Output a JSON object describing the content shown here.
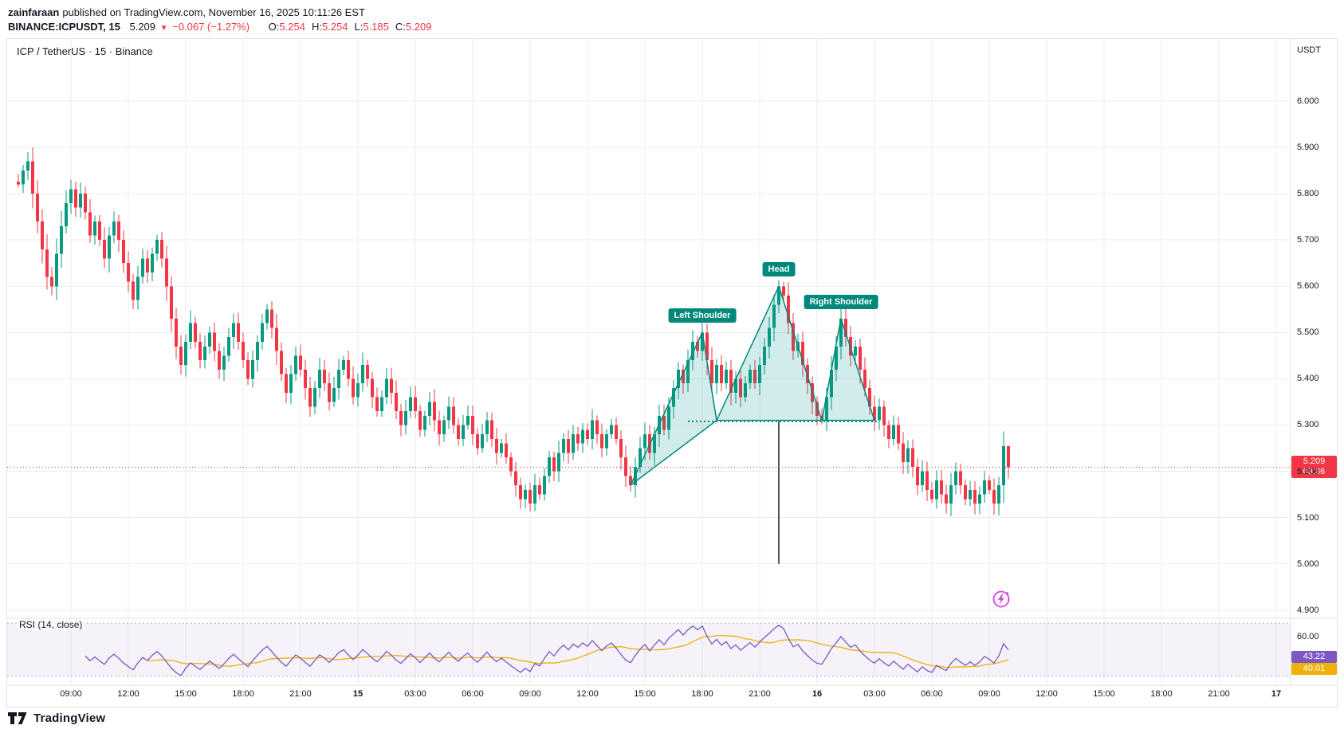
{
  "header": {
    "author": "zainfaraan",
    "published": "published on TradingView.com, November 16, 2025 10:11:26 EST",
    "symbol": "BINANCE:ICPUSDT, 15",
    "last": "5.209",
    "direction": "▼",
    "change": "−0.067 (−1.27%)",
    "o_label": "O:",
    "o_value": "5.254",
    "h_label": "H:",
    "h_value": "5.254",
    "l_label": "L:",
    "l_value": "5.185",
    "c_label": "C:",
    "c_value": "5.209"
  },
  "chart": {
    "title": "ICP / TetherUS · 15 · Binance",
    "quote_currency": "USDT",
    "price_axis": [
      "6.000",
      "5.900",
      "5.800",
      "5.700",
      "5.600",
      "5.500",
      "5.400",
      "5.300",
      "5.200",
      "5.100",
      "5.000",
      "4.900"
    ],
    "time_axis": [
      "09:00",
      "12:00",
      "15:00",
      "18:00",
      "21:00",
      "15",
      "03:00",
      "06:00",
      "09:00",
      "12:00",
      "15:00",
      "18:00",
      "21:00",
      "16",
      "03:00",
      "06:00",
      "09:00",
      "12:00",
      "15:00",
      "18:00",
      "21:00",
      "17"
    ],
    "pattern_labels": [
      "Left Shoulder",
      "Head",
      "Right Shoulder"
    ],
    "current_price_badge": {
      "price": "5.209",
      "countdown": "03:36"
    },
    "colors": {
      "up": "#089981",
      "down": "#F23645",
      "grid": "#ebedf0",
      "border": "#dde0e7",
      "pattern": "#00897B",
      "pattern_fill": "rgba(0,150,136,0.18)",
      "target": "#1b1f27",
      "rsi": "#7E57C2",
      "rsi_ma": "#EFB008",
      "rsi_band": "rgba(126,87,194,0.08)",
      "rsi_level": "rgba(120,123,134,0.6)"
    }
  },
  "rsi": {
    "label": "RSI (14, close)",
    "axis_label": "60.00",
    "value": "43.22",
    "ma_value": "40.01"
  },
  "footer": {
    "brand": "TradingView"
  },
  "chart_data": {
    "type": "candlestick",
    "symbol": "BINANCE:ICPUSDT",
    "interval": "15m",
    "quote": "USDT",
    "title": "ICP / TetherUS · 15 · Binance",
    "ylim": [
      4.88,
      6.13
    ],
    "price_gridlines": [
      6.0,
      5.9,
      5.8,
      5.7,
      5.6,
      5.5,
      5.4,
      5.3,
      5.2,
      5.1,
      5.0,
      4.9
    ],
    "x_tick_labels": [
      "09:00",
      "12:00",
      "15:00",
      "18:00",
      "21:00",
      "15",
      "03:00",
      "06:00",
      "09:00",
      "12:00",
      "15:00",
      "18:00",
      "21:00",
      "16",
      "03:00",
      "06:00",
      "09:00",
      "12:00",
      "15:00",
      "18:00",
      "21:00",
      "17"
    ],
    "closes": [
      5.82,
      5.85,
      5.87,
      5.8,
      5.74,
      5.68,
      5.62,
      5.6,
      5.67,
      5.73,
      5.78,
      5.81,
      5.77,
      5.8,
      5.76,
      5.71,
      5.74,
      5.7,
      5.66,
      5.71,
      5.74,
      5.7,
      5.65,
      5.61,
      5.57,
      5.62,
      5.66,
      5.63,
      5.67,
      5.7,
      5.66,
      5.6,
      5.53,
      5.47,
      5.43,
      5.48,
      5.52,
      5.48,
      5.44,
      5.47,
      5.5,
      5.46,
      5.42,
      5.45,
      5.49,
      5.52,
      5.48,
      5.44,
      5.4,
      5.44,
      5.48,
      5.52,
      5.55,
      5.51,
      5.46,
      5.41,
      5.37,
      5.41,
      5.45,
      5.42,
      5.38,
      5.34,
      5.38,
      5.42,
      5.39,
      5.35,
      5.38,
      5.42,
      5.44,
      5.4,
      5.36,
      5.39,
      5.43,
      5.4,
      5.36,
      5.33,
      5.36,
      5.4,
      5.37,
      5.33,
      5.3,
      5.33,
      5.36,
      5.33,
      5.29,
      5.32,
      5.35,
      5.31,
      5.28,
      5.31,
      5.34,
      5.3,
      5.27,
      5.3,
      5.32,
      5.28,
      5.25,
      5.28,
      5.31,
      5.27,
      5.24,
      5.26,
      5.23,
      5.2,
      5.17,
      5.14,
      5.16,
      5.13,
      5.17,
      5.15,
      5.19,
      5.23,
      5.2,
      5.24,
      5.27,
      5.24,
      5.28,
      5.26,
      5.29,
      5.27,
      5.31,
      5.28,
      5.25,
      5.28,
      5.3,
      5.27,
      5.23,
      5.19,
      5.17,
      5.21,
      5.25,
      5.28,
      5.24,
      5.28,
      5.32,
      5.29,
      5.34,
      5.38,
      5.42,
      5.39,
      5.44,
      5.48,
      5.46,
      5.5,
      5.44,
      5.39,
      5.43,
      5.39,
      5.42,
      5.37,
      5.4,
      5.36,
      5.39,
      5.42,
      5.39,
      5.43,
      5.47,
      5.51,
      5.56,
      5.6,
      5.58,
      5.52,
      5.46,
      5.48,
      5.43,
      5.39,
      5.35,
      5.32,
      5.31,
      5.36,
      5.42,
      5.47,
      5.53,
      5.49,
      5.45,
      5.47,
      5.42,
      5.38,
      5.34,
      5.31,
      5.34,
      5.3,
      5.27,
      5.3,
      5.26,
      5.22,
      5.25,
      5.21,
      5.17,
      5.2,
      5.16,
      5.14,
      5.18,
      5.15,
      5.13,
      5.17,
      5.2,
      5.17,
      5.14,
      5.16,
      5.13,
      5.15,
      5.18,
      5.16,
      5.13,
      5.17,
      5.254,
      5.209
    ],
    "last_candle": {
      "o": 5.254,
      "h": 5.254,
      "l": 5.185,
      "c": 5.209
    },
    "current_price": 5.209,
    "pattern": {
      "name": "Head and Shoulders",
      "anchors": [
        [
          143,
          5.5
        ],
        [
          159,
          5.6
        ],
        [
          172,
          5.53
        ]
      ],
      "triangles": [
        [
          [
            128,
            5.17
          ],
          [
            143,
            5.5
          ],
          [
            146,
            5.31
          ]
        ],
        [
          [
            146,
            5.31
          ],
          [
            159,
            5.6
          ],
          [
            168,
            5.31
          ]
        ],
        [
          [
            168,
            5.31
          ],
          [
            172,
            5.53
          ],
          [
            179,
            5.31
          ]
        ]
      ],
      "neckline": {
        "from": 140,
        "to": 180,
        "price": 5.308
      },
      "target_line": {
        "index": 159,
        "target": 5.0
      }
    },
    "indicator": {
      "type": "RSI",
      "length": 14,
      "source": "close",
      "value": 43.22,
      "ma_value": 40.01,
      "upper_band": 70,
      "lower_band": 30,
      "axis_tick": 60
    }
  }
}
